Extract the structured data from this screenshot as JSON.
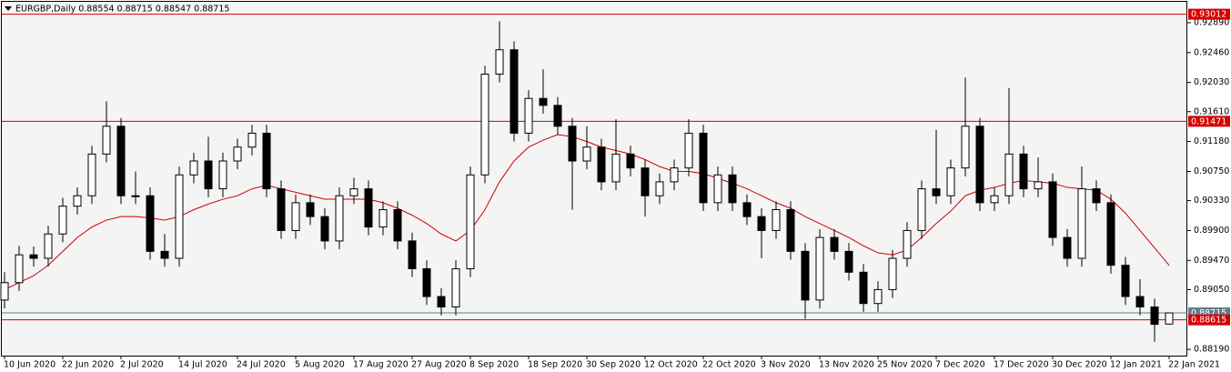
{
  "chart_data": {
    "type": "candlestick",
    "title": "EURGBP,Daily  0.88554 0.88715 0.88547 0.88715",
    "up_color": "#ffffff",
    "down_color": "#000000",
    "edge_color": "#000000",
    "ylim": [
      0.881,
      0.9319
    ],
    "yticks": [
      {
        "value": 0.9289,
        "label": "0.92890"
      },
      {
        "value": 0.9246,
        "label": "0.92460"
      },
      {
        "value": 0.9203,
        "label": "0.92030"
      },
      {
        "value": 0.9161,
        "label": "0.91610"
      },
      {
        "value": 0.9118,
        "label": "0.91180"
      },
      {
        "value": 0.9075,
        "label": "0.90750"
      },
      {
        "value": 0.9033,
        "label": "0.90330"
      },
      {
        "value": 0.899,
        "label": "0.89900"
      },
      {
        "value": 0.8947,
        "label": "0.89470"
      },
      {
        "value": 0.8905,
        "label": "0.89050"
      },
      {
        "value": 0.8819,
        "label": "0.88190"
      }
    ],
    "xticks": [
      {
        "value": 0,
        "label": "10 Jun 2020"
      },
      {
        "value": 4,
        "label": "22 Jun 2020"
      },
      {
        "value": 8,
        "label": "2 Jul 2020"
      },
      {
        "value": 12,
        "label": "14 Jul 2020"
      },
      {
        "value": 16,
        "label": "24 Jul 2020"
      },
      {
        "value": 20,
        "label": "5 Aug 2020"
      },
      {
        "value": 24,
        "label": "17 Aug 2020"
      },
      {
        "value": 28,
        "label": "27 Aug 2020"
      },
      {
        "value": 32,
        "label": "8 Sep 2020"
      },
      {
        "value": 36,
        "label": "18 Sep 2020"
      },
      {
        "value": 40,
        "label": "30 Sep 2020"
      },
      {
        "value": 44,
        "label": "12 Oct 2020"
      },
      {
        "value": 48,
        "label": "22 Oct 2020"
      },
      {
        "value": 52,
        "label": "3 Nov 2020"
      },
      {
        "value": 56,
        "label": "13 Nov 2020"
      },
      {
        "value": 60,
        "label": "25 Nov 2020"
      },
      {
        "value": 64,
        "label": "7 Dec 2020"
      },
      {
        "value": 68,
        "label": "17 Dec 2020"
      },
      {
        "value": 72,
        "label": "30 Dec 2020"
      },
      {
        "value": 76,
        "label": "12 Jan 2021"
      },
      {
        "value": 80,
        "label": "22 Jan 2021"
      }
    ],
    "levels": [
      {
        "value": 0.93012,
        "color": "#d40000"
      },
      {
        "value": 0.91471,
        "color": "#d40000"
      },
      {
        "value": 0.88715,
        "color": "#607d8b"
      },
      {
        "value": 0.88615,
        "color": "#d40000"
      }
    ],
    "ohlc": [
      [
        0.889,
        0.893,
        0.8878,
        0.8915
      ],
      [
        0.8915,
        0.8968,
        0.8903,
        0.8955
      ],
      [
        0.8955,
        0.8967,
        0.8938,
        0.895
      ],
      [
        0.895,
        0.8997,
        0.8938,
        0.8985
      ],
      [
        0.8985,
        0.9037,
        0.8973,
        0.9025
      ],
      [
        0.9025,
        0.9052,
        0.9013,
        0.904
      ],
      [
        0.904,
        0.9112,
        0.9028,
        0.91
      ],
      [
        0.91,
        0.9176,
        0.9088,
        0.914
      ],
      [
        0.914,
        0.9152,
        0.9028,
        0.904
      ],
      [
        0.904,
        0.9075,
        0.9028,
        0.904
      ],
      [
        0.904,
        0.9052,
        0.8948,
        0.896
      ],
      [
        0.896,
        0.8985,
        0.8938,
        0.895
      ],
      [
        0.895,
        0.9082,
        0.8938,
        0.907
      ],
      [
        0.907,
        0.9102,
        0.9058,
        0.909
      ],
      [
        0.909,
        0.9125,
        0.9038,
        0.905
      ],
      [
        0.905,
        0.9102,
        0.9038,
        0.909
      ],
      [
        0.909,
        0.9122,
        0.9078,
        0.911
      ],
      [
        0.911,
        0.9142,
        0.9098,
        0.913
      ],
      [
        0.913,
        0.9142,
        0.9038,
        0.905
      ],
      [
        0.905,
        0.9062,
        0.8978,
        0.899
      ],
      [
        0.899,
        0.9042,
        0.8978,
        0.903
      ],
      [
        0.903,
        0.9042,
        0.8998,
        0.901
      ],
      [
        0.901,
        0.9022,
        0.8963,
        0.8975
      ],
      [
        0.8975,
        0.9052,
        0.8963,
        0.904
      ],
      [
        0.904,
        0.9066,
        0.9028,
        0.905
      ],
      [
        0.905,
        0.9062,
        0.8983,
        0.8995
      ],
      [
        0.8995,
        0.9032,
        0.8983,
        0.902
      ],
      [
        0.902,
        0.9032,
        0.8963,
        0.8975
      ],
      [
        0.8975,
        0.8987,
        0.8923,
        0.8935
      ],
      [
        0.8935,
        0.8947,
        0.8883,
        0.8895
      ],
      [
        0.8895,
        0.8907,
        0.8868,
        0.888
      ],
      [
        0.888,
        0.8947,
        0.8868,
        0.8935
      ],
      [
        0.8935,
        0.9082,
        0.8923,
        0.907
      ],
      [
        0.907,
        0.9227,
        0.9058,
        0.9215
      ],
      [
        0.9215,
        0.9291,
        0.9203,
        0.925
      ],
      [
        0.925,
        0.9262,
        0.9118,
        0.913
      ],
      [
        0.913,
        0.9192,
        0.9118,
        0.918
      ],
      [
        0.918,
        0.9222,
        0.9158,
        0.917
      ],
      [
        0.917,
        0.9182,
        0.9128,
        0.914
      ],
      [
        0.914,
        0.9152,
        0.902,
        0.909
      ],
      [
        0.909,
        0.914,
        0.9078,
        0.911
      ],
      [
        0.911,
        0.9122,
        0.9048,
        0.906
      ],
      [
        0.906,
        0.915,
        0.9048,
        0.91
      ],
      [
        0.91,
        0.9112,
        0.9068,
        0.908
      ],
      [
        0.908,
        0.9092,
        0.901,
        0.904
      ],
      [
        0.904,
        0.9072,
        0.9028,
        0.906
      ],
      [
        0.906,
        0.9092,
        0.9048,
        0.908
      ],
      [
        0.908,
        0.915,
        0.9068,
        0.913
      ],
      [
        0.913,
        0.9142,
        0.9018,
        0.903
      ],
      [
        0.903,
        0.9082,
        0.9018,
        0.907
      ],
      [
        0.907,
        0.9082,
        0.9018,
        0.903
      ],
      [
        0.903,
        0.9042,
        0.8998,
        0.901
      ],
      [
        0.901,
        0.9022,
        0.895,
        0.899
      ],
      [
        0.899,
        0.9032,
        0.8978,
        0.902
      ],
      [
        0.902,
        0.9032,
        0.8948,
        0.896
      ],
      [
        0.896,
        0.8972,
        0.8863,
        0.889
      ],
      [
        0.889,
        0.8992,
        0.8878,
        0.898
      ],
      [
        0.898,
        0.8992,
        0.8948,
        0.896
      ],
      [
        0.896,
        0.8972,
        0.8918,
        0.893
      ],
      [
        0.893,
        0.8942,
        0.8873,
        0.8885
      ],
      [
        0.8885,
        0.8917,
        0.8873,
        0.8905
      ],
      [
        0.8905,
        0.8962,
        0.8893,
        0.895
      ],
      [
        0.895,
        0.9002,
        0.8938,
        0.899
      ],
      [
        0.899,
        0.9062,
        0.8978,
        0.905
      ],
      [
        0.905,
        0.9135,
        0.9028,
        0.904
      ],
      [
        0.904,
        0.9092,
        0.9028,
        0.908
      ],
      [
        0.908,
        0.921,
        0.9068,
        0.914
      ],
      [
        0.914,
        0.9152,
        0.9018,
        0.903
      ],
      [
        0.903,
        0.9052,
        0.9018,
        0.904
      ],
      [
        0.904,
        0.9195,
        0.9028,
        0.91
      ],
      [
        0.91,
        0.9112,
        0.9038,
        0.905
      ],
      [
        0.905,
        0.9095,
        0.9038,
        0.906
      ],
      [
        0.906,
        0.9072,
        0.8968,
        0.898
      ],
      [
        0.898,
        0.8992,
        0.8938,
        0.895
      ],
      [
        0.895,
        0.9082,
        0.8938,
        0.905
      ],
      [
        0.905,
        0.9062,
        0.9018,
        0.903
      ],
      [
        0.903,
        0.9042,
        0.8928,
        0.894
      ],
      [
        0.894,
        0.8952,
        0.8883,
        0.8895
      ],
      [
        0.8895,
        0.892,
        0.8868,
        0.888
      ],
      [
        0.888,
        0.8892,
        0.883,
        0.8855
      ],
      [
        0.88554,
        0.88715,
        0.88547,
        0.88715
      ]
    ],
    "ma": {
      "color": "#d00000",
      "values": [
        0.8905,
        0.8915,
        0.8925,
        0.894,
        0.896,
        0.898,
        0.8995,
        0.9005,
        0.901,
        0.901,
        0.9008,
        0.9005,
        0.901,
        0.902,
        0.9028,
        0.9035,
        0.904,
        0.905,
        0.9055,
        0.905,
        0.9045,
        0.904,
        0.9035,
        0.9035,
        0.9035,
        0.9035,
        0.903,
        0.9022,
        0.9012,
        0.9,
        0.8985,
        0.8975,
        0.899,
        0.902,
        0.906,
        0.909,
        0.911,
        0.912,
        0.9128,
        0.9125,
        0.9118,
        0.911,
        0.9105,
        0.91,
        0.9092,
        0.9082,
        0.9075,
        0.9075,
        0.9072,
        0.9065,
        0.9058,
        0.905,
        0.904,
        0.903,
        0.9022,
        0.901,
        0.9,
        0.899,
        0.898,
        0.8968,
        0.8958,
        0.8955,
        0.8962,
        0.898,
        0.9,
        0.9018,
        0.904,
        0.9048,
        0.9052,
        0.9058,
        0.9062,
        0.906,
        0.9058,
        0.9052,
        0.905,
        0.9048,
        0.9035,
        0.9015,
        0.899,
        0.8965,
        0.894
      ]
    }
  }
}
